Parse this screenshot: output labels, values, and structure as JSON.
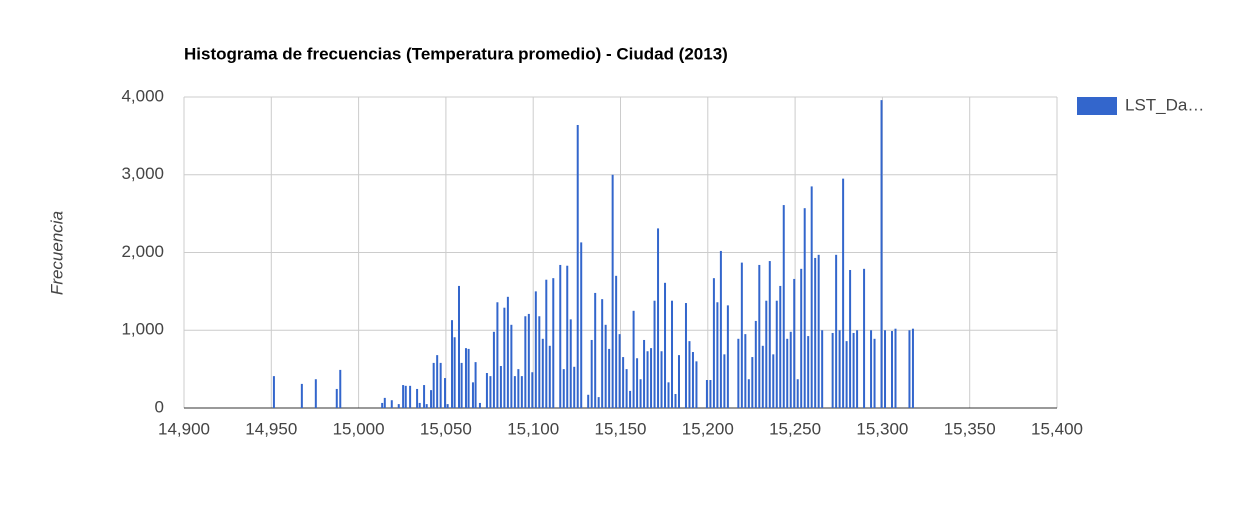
{
  "chart_data": {
    "type": "bar",
    "title": "Histograma de frecuencias (Temperatura promedio) - Ciudad (2013)",
    "y_label": "Frecuencia",
    "series": [
      {
        "name": "LST_Da…",
        "color": "#3366cc",
        "x": [
          14951.5,
          14967.5,
          14975.5,
          14987.5,
          14989.5,
          15013.5,
          15015,
          15019,
          15023,
          15025.5,
          15027,
          15029.5,
          15033.5,
          15035,
          15037.5,
          15039,
          15041.5,
          15043,
          15045,
          15047,
          15049.5,
          15051,
          15053.5,
          15055,
          15057.5,
          15059,
          15061.5,
          15063,
          15065.5,
          15067,
          15069.5,
          15073.5,
          15075.5,
          15077.5,
          15079.5,
          15081.5,
          15083.5,
          15085.5,
          15087.5,
          15089.5,
          15091.5,
          15093.5,
          15095.5,
          15097.5,
          15099.5,
          15101.5,
          15103.5,
          15105.5,
          15107.5,
          15109.5,
          15111.5,
          15115.5,
          15117.5,
          15119.5,
          15121.5,
          15123.5,
          15125.5,
          15127.5,
          15131.5,
          15133.5,
          15135.5,
          15137.5,
          15139.5,
          15141.5,
          15143.5,
          15145.5,
          15147.5,
          15149.5,
          15151.5,
          15153.5,
          15155.5,
          15157.5,
          15159.5,
          15161.5,
          15163.5,
          15165.5,
          15167.5,
          15169.5,
          15171.5,
          15173.5,
          15175.5,
          15177.5,
          15179.5,
          15181.5,
          15183.5,
          15187.5,
          15189.5,
          15191.5,
          15193.5,
          15199.5,
          15201.5,
          15203.5,
          15205.5,
          15207.5,
          15209.5,
          15211.5,
          15217.5,
          15219.5,
          15221.5,
          15223.5,
          15225.5,
          15227.5,
          15229.5,
          15231.5,
          15233.5,
          15235.5,
          15237.5,
          15239.5,
          15241.5,
          15243.5,
          15245.5,
          15247.5,
          15249.5,
          15251.5,
          15253.5,
          15255.5,
          15257.5,
          15259.5,
          15261.5,
          15263.5,
          15265.5,
          15271.5,
          15273.5,
          15275.5,
          15277.5,
          15279.5,
          15281.5,
          15283.5,
          15285.5,
          15289.5,
          15293.5,
          15295.5,
          15299.5,
          15301.5,
          15305.5,
          15307.5,
          15315.5,
          15317.5
        ],
        "values": [
          410,
          310,
          370,
          245,
          490,
          65,
          130,
          100,
          50,
          295,
          285,
          285,
          245,
          65,
          295,
          50,
          230,
          580,
          680,
          580,
          385,
          50,
          1130,
          910,
          1570,
          580,
          770,
          760,
          330,
          590,
          65,
          450,
          410,
          980,
          1360,
          540,
          1290,
          1430,
          1070,
          410,
          500,
          410,
          1180,
          1210,
          460,
          1500,
          1180,
          890,
          1650,
          800,
          1670,
          1840,
          500,
          1830,
          1140,
          530,
          3640,
          2130,
          170,
          875,
          1480,
          140,
          1400,
          1070,
          760,
          3000,
          1700,
          950,
          655,
          500,
          220,
          1250,
          640,
          370,
          875,
          730,
          770,
          1380,
          2310,
          730,
          1610,
          330,
          1380,
          180,
          680,
          1350,
          860,
          720,
          600,
          360,
          360,
          1670,
          1360,
          2020,
          690,
          1320,
          890,
          1870,
          950,
          370,
          655,
          1120,
          1840,
          800,
          1380,
          1890,
          690,
          1380,
          1570,
          2610,
          890,
          980,
          1660,
          370,
          1790,
          2570,
          925,
          2850,
          1930,
          1970,
          1000,
          965,
          1970,
          1000,
          2950,
          860,
          1775,
          965,
          1000,
          1790,
          1000,
          890,
          3960,
          1000,
          990,
          1020,
          1000,
          1020
        ]
      }
    ],
    "xlim": [
      14900,
      15400
    ],
    "xticks": [
      {
        "value": 14900,
        "label": "14,900"
      },
      {
        "value": 14950,
        "label": "14,950"
      },
      {
        "value": 15000,
        "label": "15,000"
      },
      {
        "value": 15050,
        "label": "15,050"
      },
      {
        "value": 15100,
        "label": "15,100"
      },
      {
        "value": 15150,
        "label": "15,150"
      },
      {
        "value": 15200,
        "label": "15,200"
      },
      {
        "value": 15250,
        "label": "15,250"
      },
      {
        "value": 15300,
        "label": "15,300"
      },
      {
        "value": 15350,
        "label": "15,350"
      },
      {
        "value": 15400,
        "label": "15,400"
      }
    ],
    "ylim": [
      0,
      4000
    ],
    "yticks": [
      0,
      {
        "value": 1000,
        "label": "1,000"
      },
      {
        "value": 2000,
        "label": "2,000"
      },
      {
        "value": 3000,
        "label": "3,000"
      },
      {
        "value": 4000,
        "label": "4,000"
      }
    ],
    "grid": true,
    "legend": "right"
  }
}
